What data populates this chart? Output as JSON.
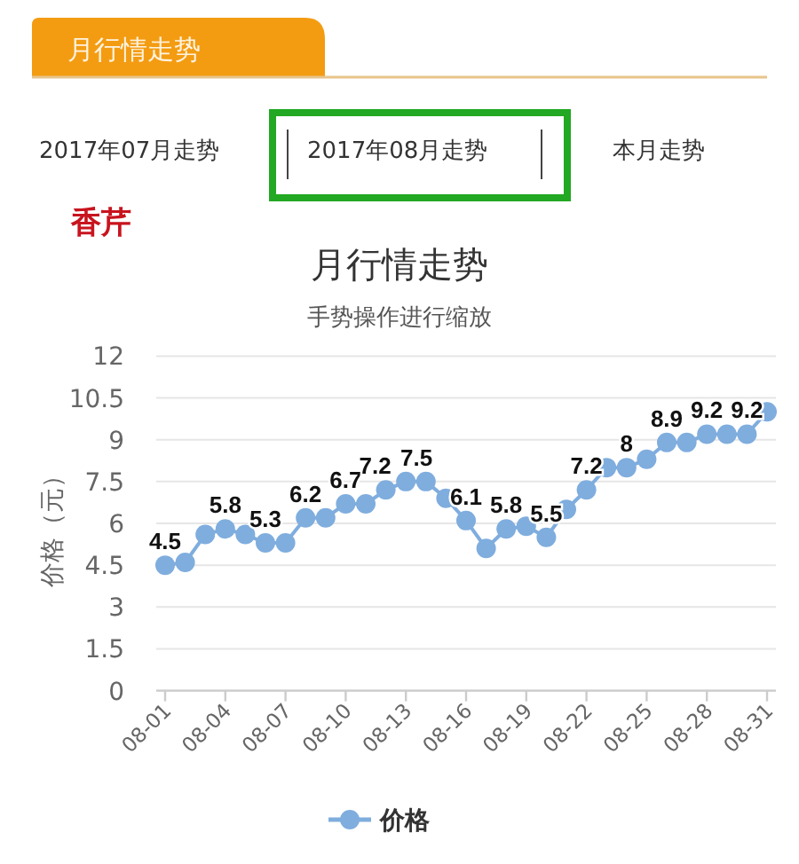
{
  "chart_data": {
    "type": "line",
    "title": "月行情走势",
    "subtitle": "手势操作进行缩放",
    "ylabel": "价格（元）",
    "annotations": [
      "月行情走势",
      "2017年07月走势",
      "2017年08月走势",
      "本月走势",
      "香芹"
    ],
    "categories": [
      "08-01",
      null,
      null,
      "08-04",
      null,
      null,
      "08-07",
      null,
      null,
      "08-10",
      null,
      null,
      "08-13",
      null,
      null,
      "08-16",
      null,
      null,
      "08-19",
      null,
      null,
      "08-22",
      null,
      null,
      "08-25",
      null,
      null,
      "08-28",
      null,
      null,
      "08-31"
    ],
    "series": [
      {
        "name": "价格",
        "color": "#7fadde",
        "values": [
          4.5,
          4.6,
          5.6,
          5.8,
          5.6,
          5.3,
          5.3,
          6.2,
          6.2,
          6.7,
          6.7,
          7.2,
          7.5,
          7.5,
          6.9,
          6.1,
          5.1,
          5.8,
          5.9,
          5.5,
          6.5,
          7.2,
          8.0,
          8.0,
          8.3,
          8.9,
          8.9,
          9.2,
          9.2,
          9.2,
          10.0
        ],
        "value_labels": [
          "4.5",
          null,
          null,
          "5.8",
          null,
          "5.3",
          null,
          "6.2",
          null,
          "6.7",
          null,
          "7.2",
          "7.5",
          null,
          null,
          "6.1",
          null,
          "5.8",
          null,
          "5.5",
          null,
          "7.2",
          null,
          "8",
          null,
          "8.9",
          null,
          "9.2",
          null,
          "9.2",
          null
        ]
      }
    ],
    "ylim": [
      0,
      12
    ],
    "yticks": [
      0,
      1.5,
      3,
      4.5,
      6,
      7.5,
      9,
      10.5,
      12
    ],
    "grid": "y",
    "legend": "bottom",
    "marker": "circle",
    "line_style": "solid"
  }
}
